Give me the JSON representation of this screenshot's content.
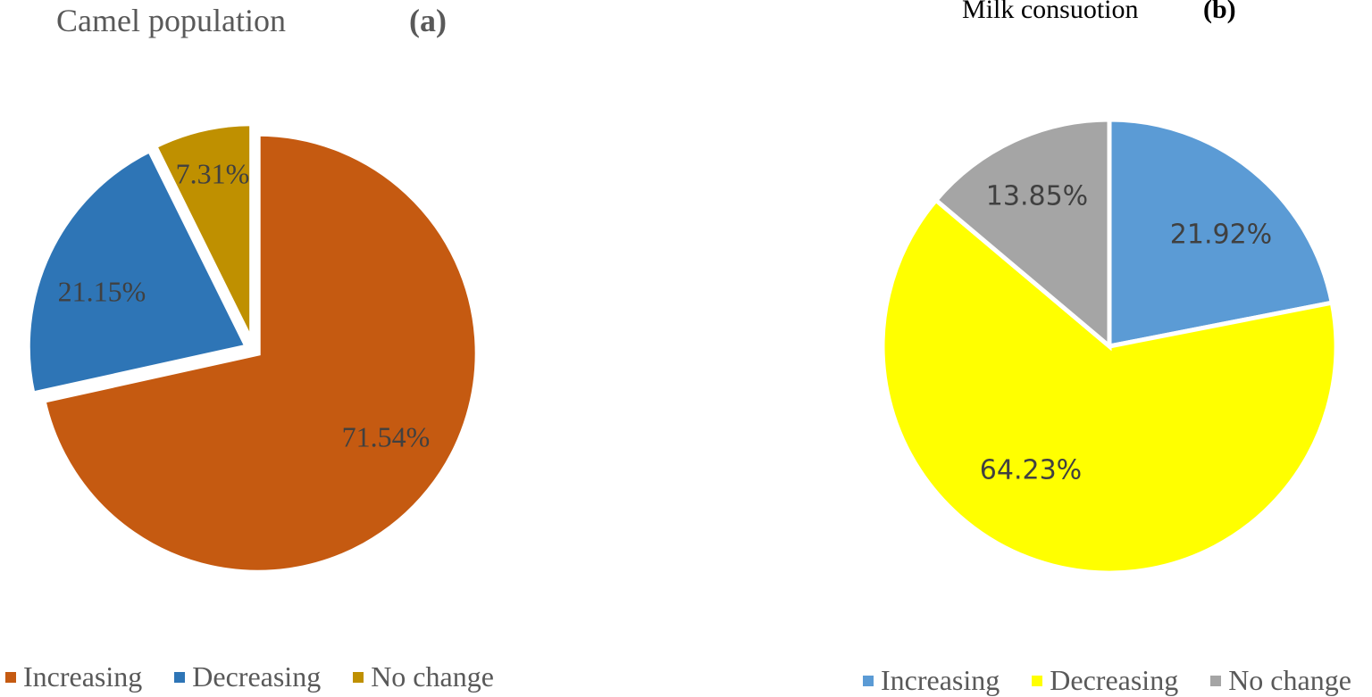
{
  "chart_data": [
    {
      "type": "pie",
      "title": "Camel population",
      "panel_label": "(a)",
      "categories": [
        "Increasing",
        "Decreasing",
        "No change"
      ],
      "values": [
        71.54,
        21.15,
        7.31
      ],
      "labels": [
        "71.54%",
        "21.15%",
        "7.31%"
      ],
      "colors": [
        "#C55A11",
        "#2E75B6",
        "#BF9000"
      ],
      "exploded": true,
      "legend_position": "bottom"
    },
    {
      "type": "pie",
      "title": "Milk consuotion",
      "panel_label": "(b)",
      "categories": [
        "Increasing",
        "Decreasing",
        "No change"
      ],
      "values": [
        21.92,
        64.23,
        13.85
      ],
      "labels": [
        "21.92%",
        "64.23%",
        "13.85%"
      ],
      "colors": [
        "#5B9BD5",
        "#FFFF00",
        "#A5A5A5"
      ],
      "exploded": false,
      "legend_position": "bottom"
    }
  ]
}
